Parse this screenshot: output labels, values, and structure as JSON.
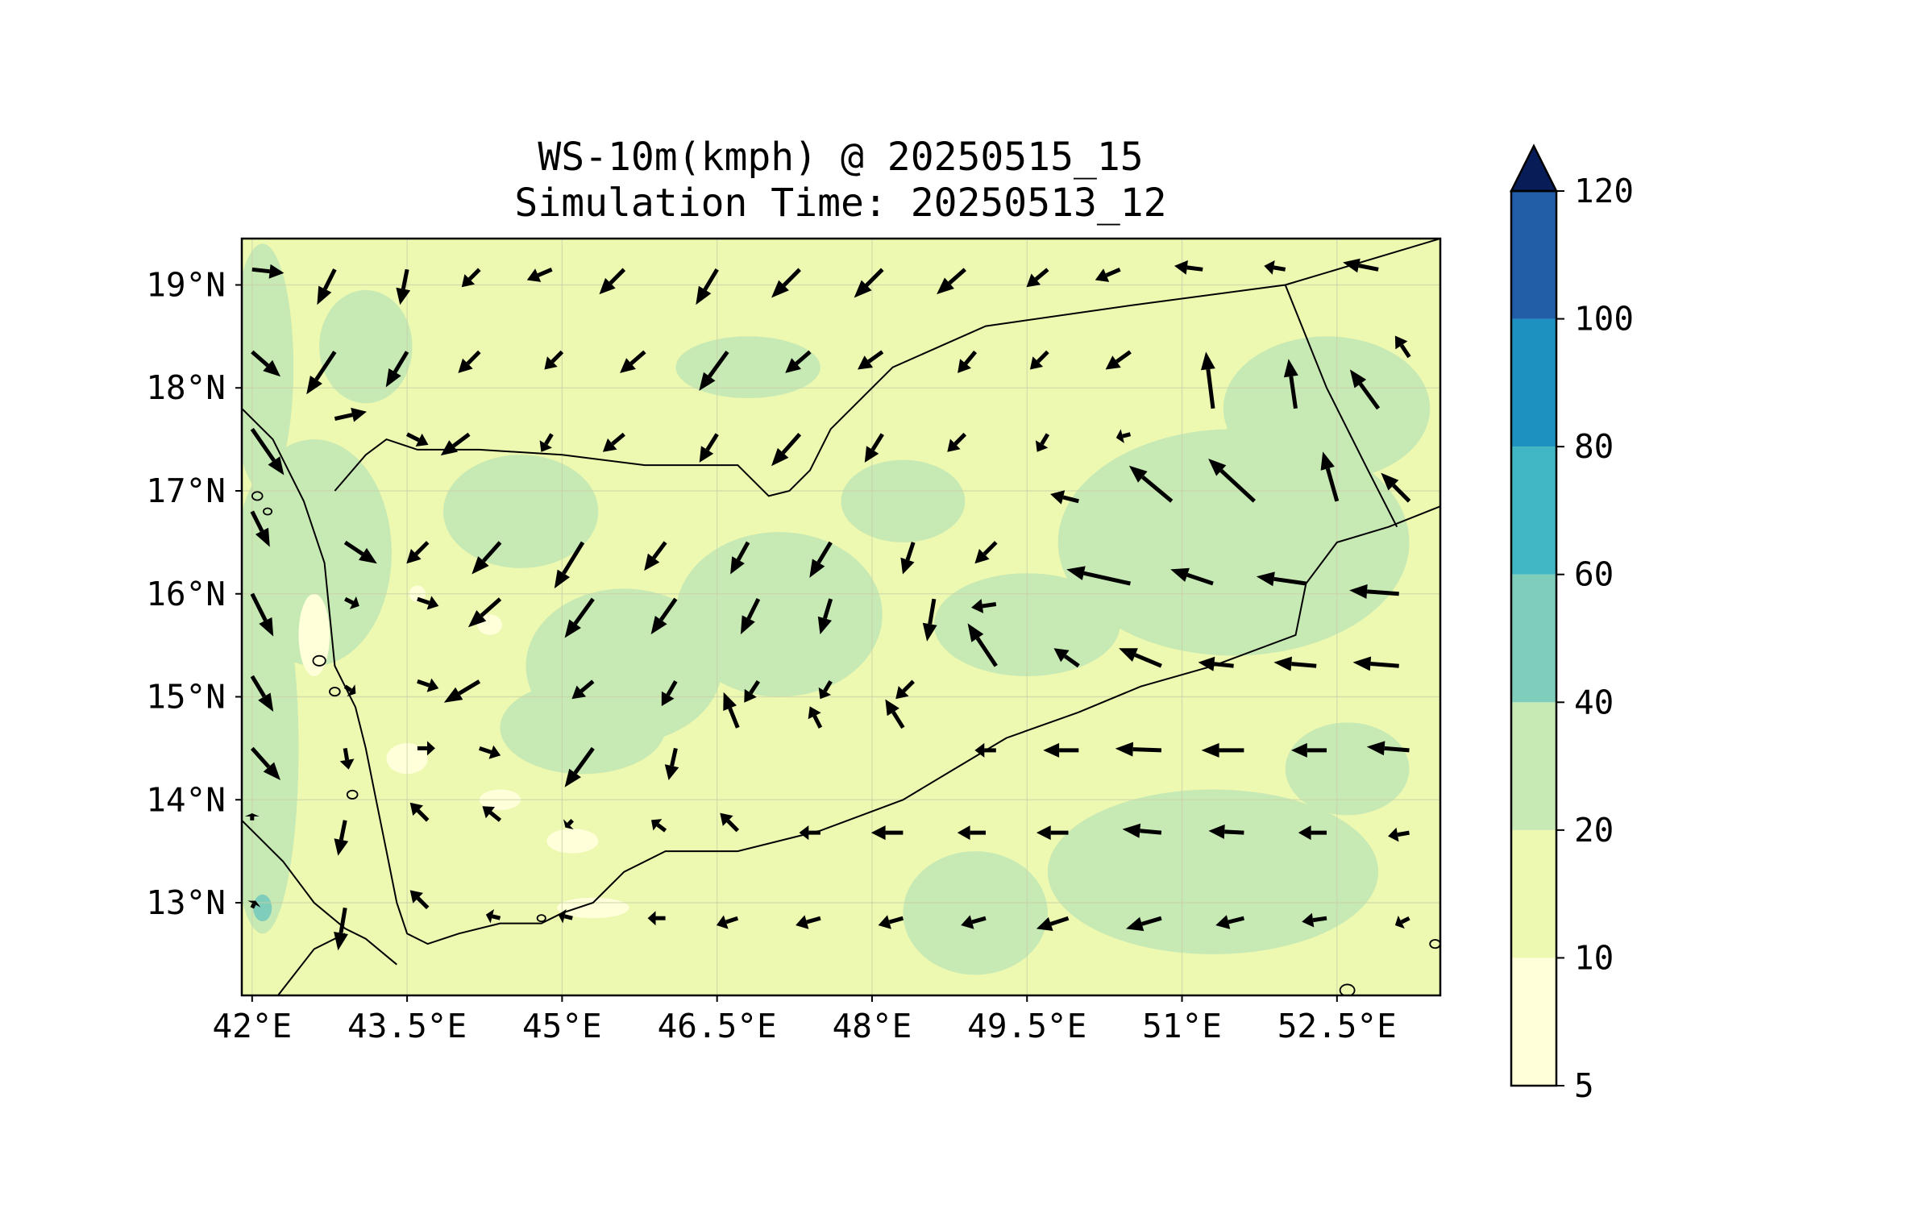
{
  "title": {
    "line1": "WS-10m(kmph) @ 20250515_15",
    "line2": "Simulation Time: 20250513_12"
  },
  "map": {
    "lon_range": [
      41.9,
      53.5
    ],
    "lat_range": [
      12.1,
      19.45
    ],
    "x_ticks": [
      {
        "value": 42.0,
        "label": "42°E"
      },
      {
        "value": 43.5,
        "label": "43.5°E"
      },
      {
        "value": 45.0,
        "label": "45°E"
      },
      {
        "value": 46.5,
        "label": "46.5°E"
      },
      {
        "value": 48.0,
        "label": "48°E"
      },
      {
        "value": 49.5,
        "label": "49.5°E"
      },
      {
        "value": 51.0,
        "label": "51°E"
      },
      {
        "value": 52.5,
        "label": "52.5°E"
      }
    ],
    "y_ticks": [
      {
        "value": 13,
        "label": "13°N"
      },
      {
        "value": 14,
        "label": "14°N"
      },
      {
        "value": 15,
        "label": "15°N"
      },
      {
        "value": 16,
        "label": "16°N"
      },
      {
        "value": 17,
        "label": "17°N"
      },
      {
        "value": 18,
        "label": "18°N"
      },
      {
        "value": 19,
        "label": "19°N"
      }
    ],
    "gridlines": true,
    "background_color": "#edf8b1",
    "land_outline": [
      [
        41.9,
        17.8
      ],
      [
        42.2,
        17.5
      ],
      [
        42.5,
        16.9
      ],
      [
        42.7,
        16.3
      ],
      [
        42.75,
        15.8
      ],
      [
        42.8,
        15.3
      ],
      [
        43.0,
        14.9
      ],
      [
        43.1,
        14.5
      ],
      [
        43.2,
        14.0
      ],
      [
        43.3,
        13.5
      ],
      [
        43.4,
        13.0
      ],
      [
        43.5,
        12.7
      ],
      [
        43.7,
        12.6
      ],
      [
        44.0,
        12.7
      ],
      [
        44.4,
        12.8
      ],
      [
        44.8,
        12.8
      ],
      [
        45.0,
        12.9
      ],
      [
        45.3,
        13.0
      ],
      [
        45.6,
        13.3
      ],
      [
        46.0,
        13.5
      ],
      [
        46.7,
        13.5
      ],
      [
        47.5,
        13.7
      ],
      [
        48.3,
        14.0
      ],
      [
        48.8,
        14.3
      ],
      [
        49.3,
        14.6
      ],
      [
        50.0,
        14.85
      ],
      [
        50.6,
        15.1
      ],
      [
        51.3,
        15.3
      ],
      [
        52.1,
        15.6
      ],
      [
        52.2,
        16.1
      ],
      [
        52.5,
        16.5
      ],
      [
        53.0,
        16.65
      ],
      [
        53.5,
        16.85
      ]
    ],
    "border_saudi": [
      [
        42.8,
        17.0
      ],
      [
        43.1,
        17.35
      ],
      [
        43.3,
        17.5
      ],
      [
        43.6,
        17.4
      ],
      [
        44.2,
        17.4
      ],
      [
        45.0,
        17.35
      ],
      [
        45.8,
        17.25
      ],
      [
        46.7,
        17.25
      ],
      [
        47.0,
        16.95
      ],
      [
        47.2,
        17.0
      ],
      [
        47.4,
        17.2
      ],
      [
        47.6,
        17.6
      ],
      [
        48.2,
        18.2
      ],
      [
        49.1,
        18.6
      ],
      [
        50.5,
        18.8
      ],
      [
        52.0,
        19.0
      ],
      [
        53.5,
        19.45
      ]
    ],
    "border_oman": [
      [
        52.0,
        19.0
      ],
      [
        52.4,
        18.0
      ],
      [
        52.8,
        17.2
      ],
      [
        53.08,
        16.65
      ]
    ],
    "africa_coast": [
      [
        41.9,
        13.8
      ],
      [
        42.3,
        13.4
      ],
      [
        42.6,
        13.0
      ],
      [
        42.9,
        12.75
      ],
      [
        43.1,
        12.65
      ],
      [
        43.4,
        12.4
      ]
    ],
    "africa_coast_2": [
      [
        42.25,
        12.1
      ],
      [
        42.6,
        12.55
      ],
      [
        42.9,
        12.7
      ]
    ],
    "islands": [
      {
        "lon": 42.65,
        "lat": 15.35,
        "r": 0.06
      },
      {
        "lon": 42.8,
        "lat": 15.05,
        "r": 0.05
      },
      {
        "lon": 42.97,
        "lat": 14.05,
        "r": 0.05
      },
      {
        "lon": 42.05,
        "lat": 16.95,
        "r": 0.05
      },
      {
        "lon": 42.15,
        "lat": 16.8,
        "r": 0.04
      },
      {
        "lon": 44.8,
        "lat": 12.85,
        "r": 0.04
      },
      {
        "lon": 53.45,
        "lat": 12.6,
        "r": 0.05
      },
      {
        "lon": 52.6,
        "lat": 12.15,
        "r": 0.07
      }
    ],
    "speed_patches": [
      {
        "lon": 42.6,
        "lat": 16.4,
        "rx": 0.75,
        "ry": 1.1,
        "level": 2
      },
      {
        "lon": 42.1,
        "lat": 14.5,
        "rx": 0.35,
        "ry": 1.8,
        "level": 2
      },
      {
        "lon": 42.1,
        "lat": 18.2,
        "rx": 0.3,
        "ry": 1.2,
        "level": 2
      },
      {
        "lon": 43.1,
        "lat": 18.4,
        "rx": 0.45,
        "ry": 0.55,
        "level": 2
      },
      {
        "lon": 44.6,
        "lat": 16.8,
        "rx": 0.75,
        "ry": 0.55,
        "level": 2
      },
      {
        "lon": 45.6,
        "lat": 15.3,
        "rx": 0.95,
        "ry": 0.75,
        "level": 2
      },
      {
        "lon": 47.1,
        "lat": 15.8,
        "rx": 1.0,
        "ry": 0.8,
        "level": 2
      },
      {
        "lon": 45.2,
        "lat": 14.7,
        "rx": 0.8,
        "ry": 0.45,
        "level": 2
      },
      {
        "lon": 46.8,
        "lat": 18.2,
        "rx": 0.7,
        "ry": 0.3,
        "level": 2
      },
      {
        "lon": 48.3,
        "lat": 16.9,
        "rx": 0.6,
        "ry": 0.4,
        "level": 2
      },
      {
        "lon": 49.5,
        "lat": 15.7,
        "rx": 0.9,
        "ry": 0.5,
        "level": 2
      },
      {
        "lon": 51.5,
        "lat": 16.5,
        "rx": 1.7,
        "ry": 1.1,
        "level": 2
      },
      {
        "lon": 52.4,
        "lat": 17.8,
        "rx": 1.0,
        "ry": 0.7,
        "level": 2
      },
      {
        "lon": 51.3,
        "lat": 13.3,
        "rx": 1.6,
        "ry": 0.8,
        "level": 2
      },
      {
        "lon": 49.0,
        "lat": 12.9,
        "rx": 0.7,
        "ry": 0.6,
        "level": 2
      },
      {
        "lon": 52.6,
        "lat": 14.3,
        "rx": 0.6,
        "ry": 0.45,
        "level": 2
      },
      {
        "lon": 42.6,
        "lat": 15.6,
        "rx": 0.15,
        "ry": 0.4,
        "level": 0
      },
      {
        "lon": 43.5,
        "lat": 14.4,
        "rx": 0.2,
        "ry": 0.15,
        "level": 0
      },
      {
        "lon": 43.6,
        "lat": 16.0,
        "rx": 0.08,
        "ry": 0.08,
        "level": 0
      },
      {
        "lon": 45.1,
        "lat": 13.6,
        "rx": 0.25,
        "ry": 0.12,
        "level": 0
      },
      {
        "lon": 44.4,
        "lat": 14.0,
        "rx": 0.2,
        "ry": 0.1,
        "level": 0
      },
      {
        "lon": 44.3,
        "lat": 15.7,
        "rx": 0.12,
        "ry": 0.1,
        "level": 0
      },
      {
        "lon": 45.3,
        "lat": 12.95,
        "rx": 0.35,
        "ry": 0.1,
        "level": 0
      },
      {
        "lon": 42.1,
        "lat": 12.95,
        "rx": 0.09,
        "ry": 0.13,
        "level": 3
      }
    ]
  },
  "colorbar": {
    "levels": [
      "5",
      "10",
      "20",
      "40",
      "60",
      "80",
      "100",
      "120"
    ],
    "colors": [
      "#ffffd9",
      "#edf8b1",
      "#c7e9b4",
      "#7fcdbb",
      "#41b6c4",
      "#1d91c0",
      "#225ea8",
      "#253494"
    ],
    "extend_color": "#081d58",
    "extend": "max"
  },
  "vectors": [
    [
      42.0,
      19.15,
      0.9,
      -0.1
    ],
    [
      42.8,
      19.15,
      -0.5,
      -1.0
    ],
    [
      43.5,
      19.15,
      -0.2,
      -1.0
    ],
    [
      44.2,
      19.15,
      -0.5,
      -0.5
    ],
    [
      44.9,
      19.15,
      -0.7,
      -0.3
    ],
    [
      45.6,
      19.15,
      -0.7,
      -0.7
    ],
    [
      46.5,
      19.15,
      -0.6,
      -1.0
    ],
    [
      47.3,
      19.15,
      -0.8,
      -0.8
    ],
    [
      48.1,
      19.15,
      -0.8,
      -0.8
    ],
    [
      48.9,
      19.15,
      -0.8,
      -0.7
    ],
    [
      49.7,
      19.15,
      -0.6,
      -0.5
    ],
    [
      50.4,
      19.15,
      -0.7,
      -0.3
    ],
    [
      51.2,
      19.15,
      -0.8,
      0.1
    ],
    [
      52.0,
      19.15,
      -0.6,
      0.1
    ],
    [
      52.9,
      19.15,
      -1.0,
      0.2
    ],
    [
      42.0,
      18.35,
      0.8,
      -0.7
    ],
    [
      42.8,
      18.35,
      -0.8,
      -1.2
    ],
    [
      43.5,
      18.35,
      -0.6,
      -1.0
    ],
    [
      44.2,
      18.35,
      -0.6,
      -0.6
    ],
    [
      45.0,
      18.35,
      -0.5,
      -0.5
    ],
    [
      45.8,
      18.35,
      -0.7,
      -0.6
    ],
    [
      46.6,
      18.35,
      -0.8,
      -1.1
    ],
    [
      47.4,
      18.35,
      -0.7,
      -0.6
    ],
    [
      48.1,
      18.35,
      -0.7,
      -0.5
    ],
    [
      49.0,
      18.35,
      -0.5,
      -0.6
    ],
    [
      49.7,
      18.35,
      -0.5,
      -0.5
    ],
    [
      50.5,
      18.35,
      -0.7,
      -0.5
    ],
    [
      51.3,
      17.8,
      -0.2,
      1.6
    ],
    [
      52.1,
      17.8,
      -0.2,
      1.4
    ],
    [
      52.9,
      17.8,
      -0.8,
      1.1
    ],
    [
      53.2,
      18.3,
      -0.4,
      0.6
    ],
    [
      42.0,
      17.6,
      0.9,
      -1.3
    ],
    [
      42.8,
      17.7,
      0.9,
      0.2
    ],
    [
      43.5,
      17.55,
      0.6,
      -0.3
    ],
    [
      44.1,
      17.55,
      -0.8,
      -0.6
    ],
    [
      44.9,
      17.55,
      -0.3,
      -0.5
    ],
    [
      45.6,
      17.55,
      -0.6,
      -0.5
    ],
    [
      46.5,
      17.55,
      -0.5,
      -0.8
    ],
    [
      47.3,
      17.55,
      -0.8,
      -0.9
    ],
    [
      48.1,
      17.55,
      -0.5,
      -0.8
    ],
    [
      48.9,
      17.55,
      -0.5,
      -0.5
    ],
    [
      49.7,
      17.55,
      -0.3,
      -0.5
    ],
    [
      50.5,
      17.55,
      -0.4,
      -0.1
    ],
    [
      50.9,
      16.9,
      -1.2,
      1.0
    ],
    [
      51.7,
      16.9,
      -1.3,
      1.2
    ],
    [
      52.5,
      16.9,
      -0.4,
      1.4
    ],
    [
      53.2,
      16.9,
      -0.8,
      0.8
    ],
    [
      42.0,
      16.8,
      0.5,
      -1.0
    ],
    [
      42.9,
      16.5,
      0.9,
      -0.6
    ],
    [
      43.7,
      16.5,
      -0.6,
      -0.6
    ],
    [
      44.4,
      16.5,
      -0.8,
      -0.9
    ],
    [
      45.2,
      16.5,
      -0.8,
      -1.3
    ],
    [
      46.0,
      16.5,
      -0.6,
      -0.8
    ],
    [
      46.8,
      16.5,
      -0.5,
      -0.9
    ],
    [
      47.6,
      16.5,
      -0.6,
      -1.0
    ],
    [
      48.4,
      16.5,
      -0.3,
      -0.9
    ],
    [
      49.2,
      16.5,
      -0.6,
      -0.6
    ],
    [
      50.0,
      16.9,
      -0.8,
      0.2
    ],
    [
      42.0,
      16.0,
      0.6,
      -1.2
    ],
    [
      42.9,
      15.95,
      0.4,
      -0.2
    ],
    [
      43.6,
      15.95,
      0.6,
      -0.2
    ],
    [
      44.4,
      15.95,
      -0.9,
      -0.8
    ],
    [
      45.3,
      15.95,
      -0.8,
      -1.1
    ],
    [
      46.1,
      15.95,
      -0.7,
      -1.0
    ],
    [
      46.9,
      15.95,
      -0.5,
      -1.0
    ],
    [
      47.6,
      15.95,
      -0.3,
      -1.0
    ],
    [
      48.6,
      15.95,
      -0.2,
      -1.2
    ],
    [
      49.2,
      15.9,
      -0.7,
      -0.1
    ],
    [
      50.5,
      16.1,
      -1.8,
      0.4
    ],
    [
      51.3,
      16.1,
      -1.2,
      0.4
    ],
    [
      52.2,
      16.1,
      -1.4,
      0.2
    ],
    [
      53.1,
      16.0,
      -1.4,
      0.1
    ],
    [
      42.0,
      15.2,
      0.6,
      -1.0
    ],
    [
      42.9,
      15.1,
      0.3,
      -0.2
    ],
    [
      43.6,
      15.15,
      0.6,
      -0.2
    ],
    [
      44.2,
      15.15,
      -1.0,
      -0.6
    ],
    [
      45.3,
      15.15,
      -0.6,
      -0.5
    ],
    [
      46.1,
      15.15,
      -0.4,
      -0.7
    ],
    [
      46.9,
      15.15,
      -0.4,
      -0.6
    ],
    [
      47.6,
      15.15,
      -0.3,
      -0.5
    ],
    [
      48.4,
      15.15,
      -0.5,
      -0.5
    ],
    [
      49.2,
      15.3,
      -0.8,
      1.2
    ],
    [
      50.0,
      15.3,
      -0.7,
      0.5
    ],
    [
      50.8,
      15.3,
      -1.2,
      0.5
    ],
    [
      51.5,
      15.3,
      -1.0,
      0.1
    ],
    [
      52.3,
      15.3,
      -1.2,
      0.1
    ],
    [
      53.1,
      15.3,
      -1.3,
      0.1
    ],
    [
      42.0,
      14.5,
      0.8,
      -0.9
    ],
    [
      42.9,
      14.5,
      0.1,
      -0.6
    ],
    [
      43.6,
      14.5,
      0.5,
      0.0
    ],
    [
      44.2,
      14.5,
      0.6,
      -0.2
    ],
    [
      45.3,
      14.5,
      -0.8,
      -1.1
    ],
    [
      46.1,
      14.5,
      -0.2,
      -0.9
    ],
    [
      46.7,
      14.7,
      -0.4,
      1.0
    ],
    [
      47.5,
      14.7,
      -0.3,
      0.6
    ],
    [
      48.3,
      14.7,
      -0.5,
      0.8
    ],
    [
      49.2,
      14.48,
      -0.6,
      0.0
    ],
    [
      50.0,
      14.48,
      -1.0,
      0.0
    ],
    [
      50.8,
      14.48,
      -1.3,
      0.05
    ],
    [
      51.6,
      14.48,
      -1.2,
      0.0
    ],
    [
      52.4,
      14.48,
      -1.0,
      0.0
    ],
    [
      53.2,
      14.48,
      -1.2,
      0.1
    ],
    [
      42.0,
      13.8,
      0.0,
      0.2
    ],
    [
      42.9,
      13.8,
      -0.2,
      -1.0
    ],
    [
      43.7,
      13.8,
      -0.5,
      0.5
    ],
    [
      44.4,
      13.8,
      -0.5,
      0.4
    ],
    [
      45.1,
      13.8,
      -0.2,
      -0.2
    ],
    [
      46.0,
      13.7,
      -0.4,
      0.3
    ],
    [
      46.7,
      13.7,
      -0.5,
      0.5
    ],
    [
      47.5,
      13.68,
      -0.6,
      0.0
    ],
    [
      48.3,
      13.68,
      -0.9,
      0.0
    ],
    [
      49.1,
      13.68,
      -0.8,
      0.0
    ],
    [
      49.9,
      13.68,
      -0.9,
      0.0
    ],
    [
      50.8,
      13.68,
      -1.1,
      0.1
    ],
    [
      51.6,
      13.68,
      -1.0,
      0.05
    ],
    [
      52.4,
      13.68,
      -0.8,
      0.0
    ],
    [
      53.2,
      13.68,
      -0.6,
      -0.1
    ],
    [
      42.0,
      12.95,
      0.1,
      0.2
    ],
    [
      42.9,
      12.95,
      -0.2,
      -1.2
    ],
    [
      43.7,
      12.95,
      -0.5,
      0.5
    ],
    [
      44.4,
      12.85,
      -0.4,
      0.1
    ],
    [
      45.1,
      12.85,
      -0.4,
      0.1
    ],
    [
      46.0,
      12.85,
      -0.5,
      0.0
    ],
    [
      46.7,
      12.85,
      -0.6,
      -0.2
    ],
    [
      47.5,
      12.85,
      -0.7,
      -0.2
    ],
    [
      48.3,
      12.85,
      -0.7,
      -0.2
    ],
    [
      49.1,
      12.85,
      -0.7,
      -0.2
    ],
    [
      49.9,
      12.85,
      -0.9,
      -0.3
    ],
    [
      50.8,
      12.85,
      -1.0,
      -0.3
    ],
    [
      51.6,
      12.85,
      -0.8,
      -0.2
    ],
    [
      52.4,
      12.85,
      -0.7,
      -0.1
    ],
    [
      53.2,
      12.85,
      -0.4,
      -0.2
    ]
  ]
}
